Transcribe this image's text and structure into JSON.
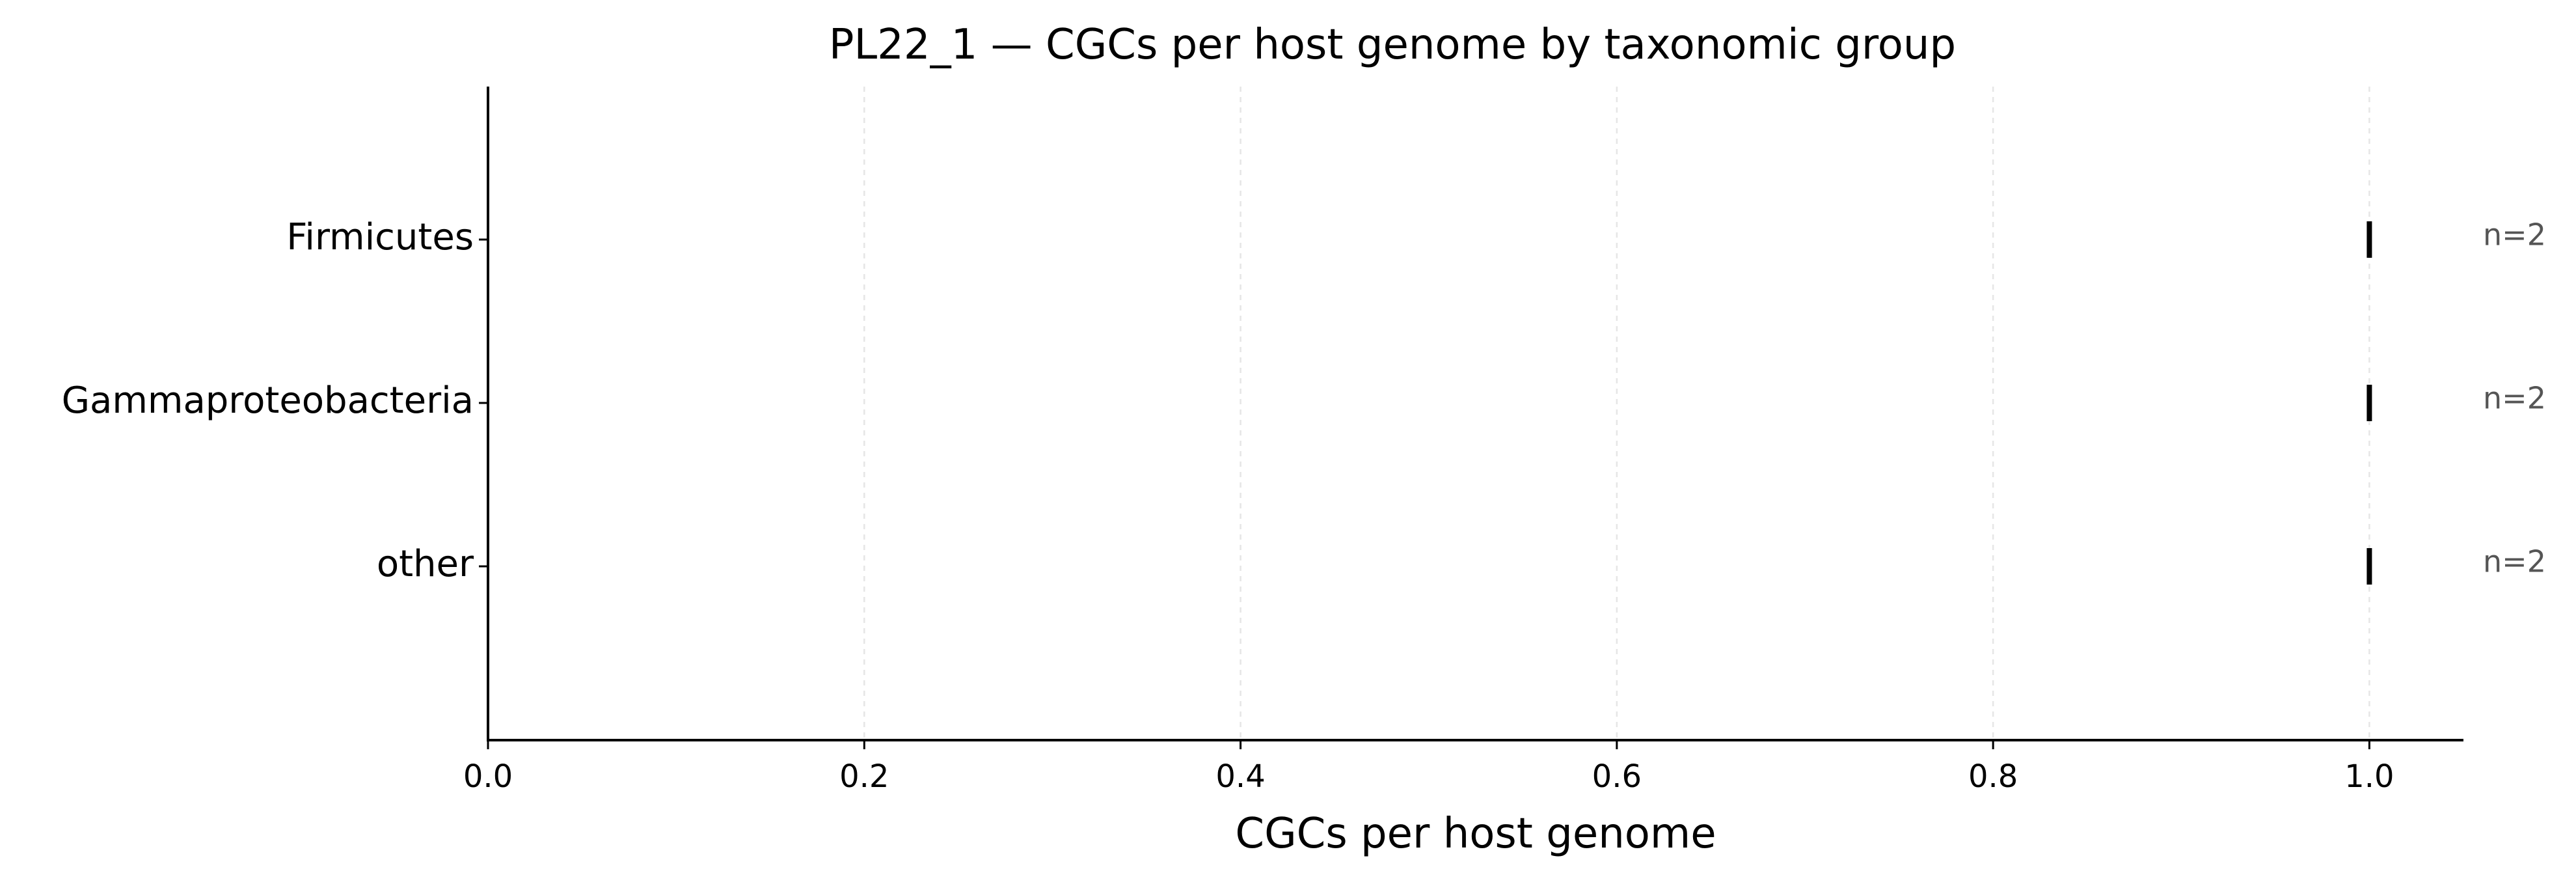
{
  "chart_data": {
    "type": "scatter",
    "title": "PL22_1 — CGCs per host genome by taxonomic group",
    "xlabel": "CGCs per host genome",
    "ylabel": "",
    "categories": [
      "Firmicutes",
      "Gammaproteobacteria",
      "other"
    ],
    "values": [
      1.0,
      1.0,
      1.0
    ],
    "counts": [
      "n=2",
      "n=2",
      "n=2"
    ],
    "xlim": [
      0.0,
      1.05
    ],
    "xticks": [
      0.0,
      0.2,
      0.4,
      0.6,
      0.8,
      1.0
    ],
    "xtick_labels": [
      "0.0",
      "0.2",
      "0.4",
      "0.6",
      "0.8",
      "1.0"
    ],
    "grid": "vertical",
    "marker_color": "#000000",
    "count_color": "#555555"
  }
}
